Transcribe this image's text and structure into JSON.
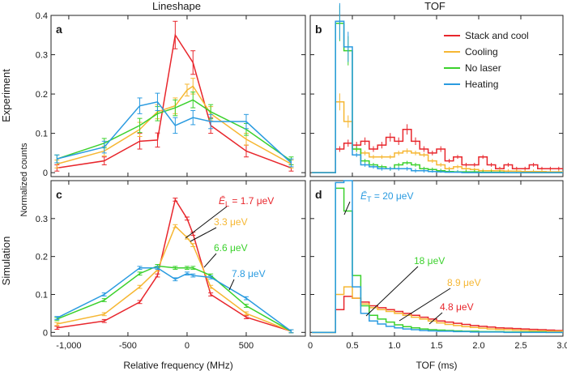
{
  "figure": {
    "column_titles": [
      "Lineshape",
      "TOF"
    ],
    "row_labels": [
      "Experiment",
      "Simulation"
    ],
    "shared_ylabel": "Normalized counts"
  },
  "chart_data": [
    {
      "panel": "a",
      "type": "line",
      "xlabel": "",
      "ylabel": "",
      "xlim": [
        -1150,
        1000
      ],
      "ylim": [
        -0.01,
        0.4
      ],
      "yticks": [
        0,
        0.1,
        0.2,
        0.3,
        0.4
      ],
      "ytick_labels": [
        "0",
        "0.1",
        "0.2",
        "0.3",
        "0.4"
      ],
      "xticks": [
        -1000,
        -500,
        0,
        500
      ],
      "error_bars": true,
      "series": [
        {
          "name": "Stack and cool",
          "color": "#e8262c",
          "x": [
            -1100,
            -700,
            -400,
            -250,
            -100,
            50,
            200,
            500,
            880
          ],
          "y": [
            0.012,
            0.03,
            0.08,
            0.083,
            0.35,
            0.28,
            0.12,
            0.055,
            0.012
          ],
          "err": [
            0.008,
            0.01,
            0.02,
            0.018,
            0.035,
            0.03,
            0.02,
            0.015,
            0.008
          ]
        },
        {
          "name": "Cooling",
          "color": "#f6b733",
          "x": [
            -1100,
            -700,
            -400,
            -250,
            -100,
            0,
            50,
            200,
            500,
            880
          ],
          "y": [
            0.022,
            0.055,
            0.11,
            0.155,
            0.17,
            0.21,
            0.22,
            0.15,
            0.085,
            0.022
          ],
          "err": [
            0.01,
            0.012,
            0.018,
            0.018,
            0.02,
            0.015,
            0.02,
            0.018,
            0.015,
            0.01
          ]
        },
        {
          "name": "No laser",
          "color": "#3bd12c",
          "x": [
            -1100,
            -700,
            -400,
            -250,
            -100,
            50,
            200,
            500,
            880
          ],
          "y": [
            0.035,
            0.075,
            0.12,
            0.15,
            0.165,
            0.185,
            0.155,
            0.11,
            0.03
          ],
          "err": [
            0.01,
            0.012,
            0.018,
            0.018,
            0.02,
            0.02,
            0.018,
            0.015,
            0.01
          ]
        },
        {
          "name": "Heating",
          "color": "#2a9be0",
          "x": [
            -1100,
            -700,
            -400,
            -250,
            -100,
            50,
            200,
            500,
            880
          ],
          "y": [
            0.035,
            0.065,
            0.17,
            0.18,
            0.12,
            0.14,
            0.13,
            0.13,
            0.025
          ],
          "err": [
            0.01,
            0.015,
            0.02,
            0.022,
            0.02,
            0.018,
            0.018,
            0.018,
            0.01
          ]
        }
      ]
    },
    {
      "panel": "b",
      "type": "step",
      "xlabel": "",
      "ylabel": "",
      "xlim": [
        0,
        3.0
      ],
      "ylim": [
        -0.01,
        0.4
      ],
      "xticks": [
        0,
        0.5,
        1.0,
        1.5,
        2.0,
        2.5,
        3.0
      ],
      "error_bars": true,
      "bin_width": 0.1,
      "bin_start": 0.2,
      "legend": {
        "placement": "top-right",
        "entries": [
          "Stack and cool",
          "Cooling",
          "No laser",
          "Heating"
        ]
      },
      "series": [
        {
          "name": "Stack and cool",
          "color": "#e8262c",
          "values": [
            0.0,
            0.06,
            0.075,
            0.07,
            0.08,
            0.06,
            0.07,
            0.09,
            0.08,
            0.11,
            0.08,
            0.06,
            0.05,
            0.06,
            0.03,
            0.04,
            0.02,
            0.02,
            0.04,
            0.02,
            0.01,
            0.02,
            0.01,
            0.01,
            0.02,
            0.01,
            0.01,
            0.01
          ]
        },
        {
          "name": "Cooling",
          "color": "#f6b733",
          "values": [
            0.0,
            0.18,
            0.13,
            0.06,
            0.05,
            0.04,
            0.04,
            0.04,
            0.05,
            0.055,
            0.05,
            0.045,
            0.03,
            0.02,
            0.01,
            0.015,
            0.01,
            0.008,
            0.005,
            0.005,
            0.005,
            0.004,
            0.004,
            0.003,
            0.003,
            0.003,
            0.002,
            0.002
          ]
        },
        {
          "name": "No laser",
          "color": "#3bd12c",
          "values": [
            0.0,
            0.38,
            0.31,
            0.06,
            0.03,
            0.02,
            0.015,
            0.01,
            0.02,
            0.025,
            0.02,
            0.01,
            0.008,
            0.005,
            0.003,
            0.002,
            0.002,
            0.002,
            0.001,
            0.001,
            0.001,
            0.0,
            0.0,
            0.0,
            0.0,
            0.0,
            0.0,
            0.0
          ]
        },
        {
          "name": "Heating",
          "color": "#2a9be0",
          "values": [
            0.0,
            0.385,
            0.32,
            0.045,
            0.02,
            0.015,
            0.01,
            0.01,
            0.01,
            0.01,
            0.005,
            0.005,
            0.003,
            0.002,
            0.001,
            0.001,
            0.0,
            0.0,
            0.0,
            0.0,
            0.0,
            0.0,
            0.0,
            0.0,
            0.0,
            0.0,
            0.0,
            0.0
          ]
        }
      ]
    },
    {
      "panel": "c",
      "type": "line",
      "xlabel": "Relative frequency (MHz)",
      "ylabel": "",
      "xlim": [
        -1150,
        1000
      ],
      "ylim": [
        -0.01,
        0.4
      ],
      "yticks": [
        0,
        0.1,
        0.2,
        0.3
      ],
      "ytick_labels": [
        "0",
        "0.1",
        "0.2",
        "0.3"
      ],
      "xticks": [
        -1000,
        -500,
        0,
        500
      ],
      "xtick_labels": [
        "-1,000",
        "-500",
        "0",
        "500"
      ],
      "error_bars": true,
      "annotations": [
        {
          "text": "Ē",
          "sub": "L",
          "rest": " = 1.7 μeV",
          "color": "#e8262c"
        },
        {
          "text": "3.3 μeV",
          "color": "#f6b733"
        },
        {
          "text": "6.6 μeV",
          "color": "#3bd12c"
        },
        {
          "text": "7.8 μeV",
          "color": "#2a9be0"
        }
      ],
      "series": [
        {
          "name": "1.7 μeV",
          "color": "#e8262c",
          "x": [
            -1100,
            -700,
            -400,
            -250,
            -100,
            0,
            50,
            200,
            500,
            880
          ],
          "y": [
            0.012,
            0.03,
            0.08,
            0.15,
            0.35,
            0.3,
            0.26,
            0.1,
            0.04,
            0.003
          ]
        },
        {
          "name": "3.3 μeV",
          "color": "#f6b733",
          "x": [
            -1100,
            -700,
            -400,
            -250,
            -100,
            0,
            50,
            200,
            500,
            880
          ],
          "y": [
            0.022,
            0.048,
            0.12,
            0.165,
            0.28,
            0.25,
            0.23,
            0.12,
            0.05,
            0.003
          ]
        },
        {
          "name": "6.6 μeV",
          "color": "#3bd12c",
          "x": [
            -1100,
            -700,
            -400,
            -250,
            -100,
            0,
            50,
            200,
            500,
            880
          ],
          "y": [
            0.035,
            0.085,
            0.155,
            0.175,
            0.17,
            0.17,
            0.17,
            0.15,
            0.07,
            0.003
          ]
        },
        {
          "name": "7.8 μeV",
          "color": "#2a9be0",
          "x": [
            -1100,
            -700,
            -400,
            -250,
            -100,
            0,
            50,
            200,
            500,
            880
          ],
          "y": [
            0.038,
            0.1,
            0.17,
            0.17,
            0.14,
            0.155,
            0.15,
            0.145,
            0.09,
            0.003
          ]
        }
      ]
    },
    {
      "panel": "d",
      "type": "step",
      "xlabel": "TOF (ms)",
      "ylabel": "",
      "xlim": [
        0,
        3.0
      ],
      "ylim": [
        -0.01,
        0.4
      ],
      "xticks": [
        0,
        0.5,
        1.0,
        1.5,
        2.0,
        2.5,
        3.0
      ],
      "xtick_labels": [
        "0",
        "0.5",
        "1.0",
        "1.5",
        "2.0",
        "2.5",
        "3.0"
      ],
      "bin_width": 0.1,
      "bin_start": 0.2,
      "annotations": [
        {
          "text": "Ē",
          "sub": "T",
          "rest": " = 20 μeV",
          "color": "#2a9be0"
        },
        {
          "text": "18 μeV",
          "color": "#3bd12c"
        },
        {
          "text": "8.9 μeV",
          "color": "#f6b733"
        },
        {
          "text": "4.8 μeV",
          "color": "#e8262c"
        }
      ],
      "series": [
        {
          "name": "4.8 μeV",
          "color": "#e8262c",
          "values": [
            0.0,
            0.06,
            0.095,
            0.09,
            0.08,
            0.07,
            0.065,
            0.06,
            0.055,
            0.05,
            0.045,
            0.04,
            0.035,
            0.03,
            0.027,
            0.024,
            0.021,
            0.018,
            0.016,
            0.014,
            0.012,
            0.011,
            0.01,
            0.009,
            0.008,
            0.007,
            0.006,
            0.005
          ]
        },
        {
          "name": "8.9 μeV",
          "color": "#f6b733",
          "values": [
            0.0,
            0.1,
            0.12,
            0.09,
            0.075,
            0.065,
            0.06,
            0.055,
            0.05,
            0.045,
            0.04,
            0.035,
            0.03,
            0.025,
            0.021,
            0.018,
            0.015,
            0.013,
            0.011,
            0.009,
            0.008,
            0.007,
            0.006,
            0.005,
            0.004,
            0.004,
            0.003,
            0.003
          ]
        },
        {
          "name": "18 μeV",
          "color": "#3bd12c",
          "values": [
            0.0,
            0.38,
            0.32,
            0.15,
            0.07,
            0.045,
            0.035,
            0.027,
            0.02,
            0.015,
            0.012,
            0.009,
            0.007,
            0.006,
            0.005,
            0.004,
            0.003,
            0.003,
            0.002,
            0.002,
            0.002,
            0.001,
            0.001,
            0.001,
            0.001,
            0.001,
            0.0,
            0.0
          ]
        },
        {
          "name": "20 μeV",
          "color": "#2a9be0",
          "values": [
            0.0,
            0.395,
            0.4,
            0.12,
            0.05,
            0.03,
            0.022,
            0.016,
            0.012,
            0.009,
            0.007,
            0.005,
            0.004,
            0.003,
            0.003,
            0.002,
            0.002,
            0.001,
            0.001,
            0.001,
            0.001,
            0.0,
            0.0,
            0.0,
            0.0,
            0.0,
            0.0,
            0.0
          ]
        }
      ]
    }
  ]
}
